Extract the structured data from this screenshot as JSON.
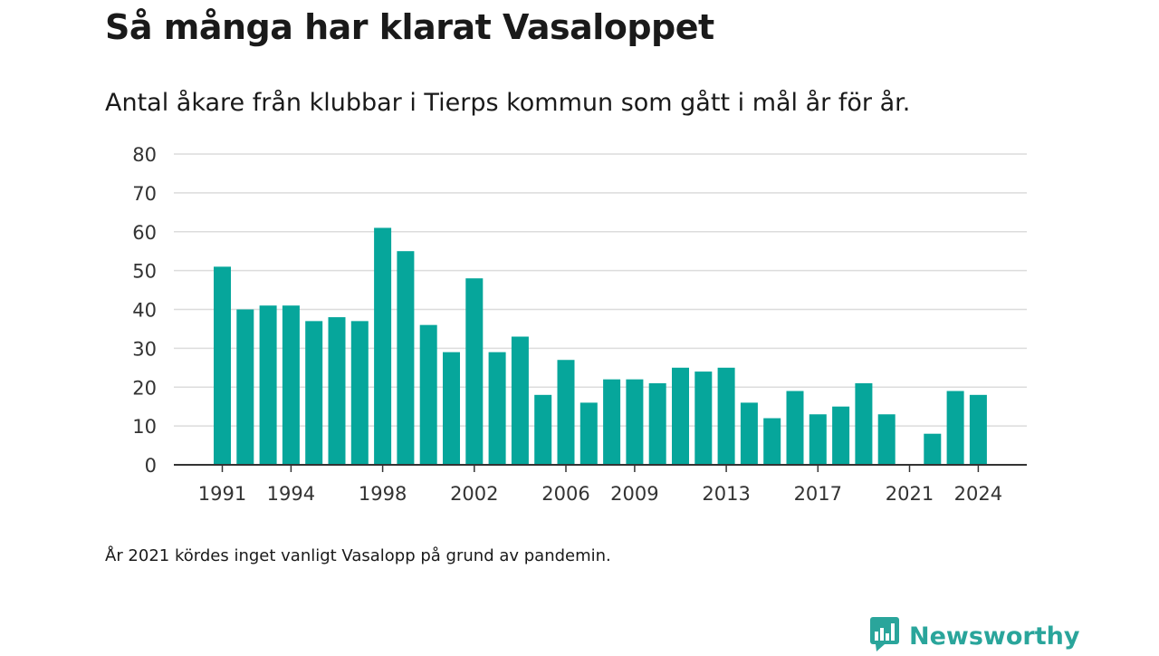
{
  "header": {
    "title": "Så många har klarat Vasaloppet",
    "subtitle": "Antal åkare från klubbar i Tierps kommun som gått i mål år för år."
  },
  "footer": {
    "note": "År 2021 kördes inget vanligt Vasalopp på grund av pandemin.",
    "brand": "Newsworthy",
    "logo_icon": "bar-chart-speech-bubble-icon"
  },
  "colors": {
    "bar": "#06a69b",
    "grid": "#dcdcdc",
    "axis": "#333333",
    "brand": "#2aa59b"
  },
  "chart_data": {
    "type": "bar",
    "x": [
      1991,
      1992,
      1993,
      1994,
      1995,
      1996,
      1997,
      1998,
      1999,
      2000,
      2001,
      2002,
      2003,
      2004,
      2005,
      2006,
      2007,
      2008,
      2009,
      2010,
      2011,
      2012,
      2013,
      2014,
      2015,
      2016,
      2017,
      2018,
      2019,
      2020,
      2021,
      2022,
      2023,
      2024
    ],
    "values": [
      51,
      40,
      41,
      41,
      37,
      38,
      37,
      61,
      55,
      36,
      29,
      48,
      29,
      33,
      18,
      27,
      16,
      22,
      22,
      21,
      25,
      24,
      25,
      16,
      12,
      19,
      13,
      15,
      21,
      13,
      0,
      8,
      19,
      18
    ],
    "x_tick_labels": [
      1991,
      1994,
      1998,
      2002,
      2006,
      2009,
      2013,
      2017,
      2021,
      2024
    ],
    "y_ticks": [
      0,
      10,
      20,
      30,
      40,
      50,
      60,
      70,
      80
    ],
    "ylim": [
      0,
      80
    ],
    "grid": true,
    "legend": "none"
  }
}
